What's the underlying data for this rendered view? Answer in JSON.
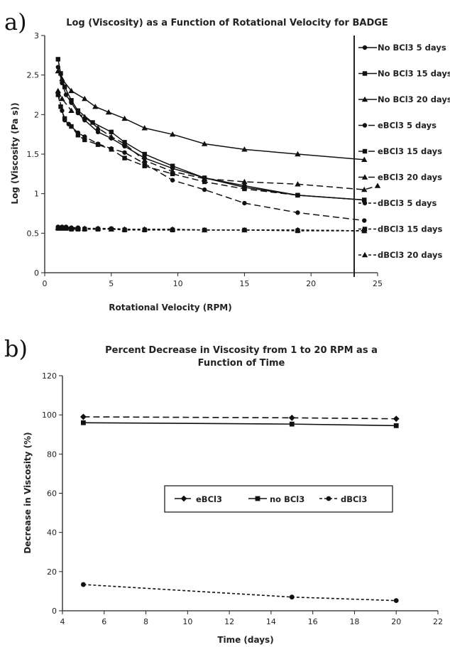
{
  "panel_labels": [
    "a)",
    "b)"
  ],
  "chart_data": [
    {
      "type": "line",
      "title": "Log (Viscosity) as a Function of Rotational Velocity for BADGE",
      "xlabel": "Rotational Velocity (RPM)",
      "ylabel": "Log (Viscosity (Pa s))",
      "xlim": [
        0,
        25
      ],
      "ylim": [
        0,
        3
      ],
      "x_ticks": [
        0,
        5,
        10,
        15,
        20,
        25
      ],
      "y_ticks": [
        0,
        0.5,
        1,
        1.5,
        2,
        2.5,
        3
      ],
      "legend_position": "right",
      "grid": false,
      "series": [
        {
          "name": "No BCl3 5 days",
          "marker": "circle",
          "dash": "solid",
          "points": [
            [
              1,
              2.6
            ],
            [
              1.3,
              2.4
            ],
            [
              1.6,
              2.25
            ],
            [
              2,
              2.15
            ],
            [
              2.5,
              2.02
            ],
            [
              3,
              1.93
            ],
            [
              4,
              1.78
            ],
            [
              5,
              1.7
            ],
            [
              6,
              1.6
            ],
            [
              7.5,
              1.45
            ],
            [
              9.6,
              1.32
            ],
            [
              12,
              1.2
            ],
            [
              15,
              1.1
            ],
            [
              19,
              0.98
            ],
            [
              24,
              0.92
            ]
          ]
        },
        {
          "name": "No BCl3 15 days",
          "marker": "square",
          "dash": "solid",
          "points": [
            [
              1,
              2.7
            ],
            [
              1.2,
              2.52
            ],
            [
              1.5,
              2.35
            ],
            [
              2,
              2.18
            ],
            [
              2.5,
              2.05
            ],
            [
              3.6,
              1.9
            ],
            [
              5,
              1.78
            ],
            [
              6,
              1.65
            ],
            [
              7.5,
              1.5
            ],
            [
              9.6,
              1.35
            ],
            [
              12,
              1.2
            ],
            [
              15,
              1.08
            ],
            [
              19,
              0.98
            ],
            [
              24,
              0.92
            ]
          ]
        },
        {
          "name": "No BCl3 20 days",
          "marker": "triangle",
          "dash": "solid",
          "points": [
            [
              1,
              2.55
            ],
            [
              1.3,
              2.45
            ],
            [
              2,
              2.3
            ],
            [
              3,
              2.2
            ],
            [
              3.8,
              2.1
            ],
            [
              4.8,
              2.03
            ],
            [
              6,
              1.95
            ],
            [
              7.5,
              1.83
            ],
            [
              9.6,
              1.75
            ],
            [
              12,
              1.63
            ],
            [
              15,
              1.56
            ],
            [
              19,
              1.5
            ],
            [
              24,
              1.43
            ]
          ]
        },
        {
          "name": "eBCl3 5 days",
          "marker": "circle",
          "dash": "dashed",
          "points": [
            [
              1,
              2.28
            ],
            [
              1.3,
              2.05
            ],
            [
              1.5,
              1.93
            ],
            [
              1.8,
              1.88
            ],
            [
              2.5,
              1.77
            ],
            [
              3,
              1.72
            ],
            [
              4,
              1.63
            ],
            [
              5,
              1.57
            ],
            [
              6,
              1.52
            ],
            [
              7.5,
              1.38
            ],
            [
              9.6,
              1.17
            ],
            [
              12,
              1.05
            ],
            [
              15,
              0.88
            ],
            [
              19,
              0.76
            ],
            [
              24,
              0.66
            ]
          ]
        },
        {
          "name": "eBCl3 15 days",
          "marker": "square",
          "dash": "dashed",
          "points": [
            [
              1,
              2.25
            ],
            [
              1.2,
              2.1
            ],
            [
              1.5,
              1.95
            ],
            [
              2,
              1.85
            ],
            [
              2.5,
              1.74
            ],
            [
              3,
              1.68
            ],
            [
              4,
              1.62
            ],
            [
              5,
              1.56
            ],
            [
              6,
              1.45
            ],
            [
              7.5,
              1.35
            ],
            [
              9.6,
              1.25
            ],
            [
              12,
              1.15
            ],
            [
              15,
              1.06
            ],
            [
              19,
              0.98
            ],
            [
              24,
              0.92
            ]
          ]
        },
        {
          "name": "eBCl3 20 days",
          "marker": "triangle",
          "dash": "dashed",
          "points": [
            [
              1,
              2.3
            ],
            [
              1.3,
              2.2
            ],
            [
              2,
              2.05
            ],
            [
              3,
              1.97
            ],
            [
              4,
              1.83
            ],
            [
              5,
              1.72
            ],
            [
              6,
              1.63
            ],
            [
              7.5,
              1.42
            ],
            [
              9.6,
              1.28
            ],
            [
              12,
              1.19
            ],
            [
              15,
              1.15
            ],
            [
              19,
              1.12
            ],
            [
              24,
              1.05
            ],
            [
              25,
              1.1
            ]
          ]
        },
        {
          "name": "dBCl3 5 days",
          "marker": "circle",
          "dash": "short-dashed",
          "points": [
            [
              1,
              0.58
            ],
            [
              1.3,
              0.58
            ],
            [
              1.6,
              0.58
            ],
            [
              2,
              0.57
            ],
            [
              2.5,
              0.57
            ],
            [
              3,
              0.56
            ],
            [
              4,
              0.56
            ],
            [
              5,
              0.56
            ],
            [
              6,
              0.55
            ],
            [
              7.5,
              0.55
            ],
            [
              9.6,
              0.55
            ],
            [
              12,
              0.54
            ],
            [
              15,
              0.54
            ],
            [
              19,
              0.54
            ],
            [
              24,
              0.53
            ]
          ]
        },
        {
          "name": "dBCl3 15 days",
          "marker": "square",
          "dash": "short-dashed",
          "points": [
            [
              1,
              0.56
            ],
            [
              1.3,
              0.56
            ],
            [
              1.6,
              0.56
            ],
            [
              2,
              0.55
            ],
            [
              2.5,
              0.55
            ],
            [
              3,
              0.55
            ],
            [
              4,
              0.55
            ],
            [
              5,
              0.55
            ],
            [
              6,
              0.54
            ],
            [
              7.5,
              0.54
            ],
            [
              9.6,
              0.54
            ],
            [
              12,
              0.54
            ],
            [
              15,
              0.54
            ],
            [
              19,
              0.53
            ],
            [
              24,
              0.53
            ]
          ]
        },
        {
          "name": "dBCl3 20 days",
          "marker": "triangle",
          "dash": "short-dashed",
          "points": [
            [
              1,
              0.57
            ],
            [
              1.3,
              0.57
            ],
            [
              1.6,
              0.57
            ],
            [
              2,
              0.56
            ],
            [
              2.5,
              0.56
            ],
            [
              3,
              0.56
            ],
            [
              4,
              0.56
            ],
            [
              5,
              0.55
            ],
            [
              6,
              0.55
            ],
            [
              7.5,
              0.55
            ],
            [
              9.6,
              0.55
            ],
            [
              12,
              0.54
            ],
            [
              15,
              0.54
            ],
            [
              19,
              0.54
            ],
            [
              24,
              0.53
            ]
          ]
        }
      ]
    },
    {
      "type": "line",
      "title": "Percent Decrease in Viscosity from 1 to 20 RPM as a Function of Time",
      "title_lines": [
        "Percent Decrease in Viscosity from 1 to 20 RPM as a",
        "Function of Time"
      ],
      "xlabel": "Time (days)",
      "ylabel": "Decrease in Viscosity (%)",
      "xlim": [
        4,
        22
      ],
      "ylim": [
        0,
        120
      ],
      "x_ticks": [
        4,
        6,
        8,
        10,
        12,
        14,
        16,
        18,
        20,
        22
      ],
      "y_ticks": [
        0,
        20,
        40,
        60,
        80,
        100,
        120
      ],
      "legend_position": "center",
      "grid": false,
      "series": [
        {
          "name": "eBCl3",
          "marker": "diamond",
          "dash": "dashed",
          "points": [
            [
              5,
              99
            ],
            [
              15,
              98.5
            ],
            [
              20,
              98
            ]
          ]
        },
        {
          "name": "no BCl3",
          "marker": "square",
          "dash": "solid",
          "points": [
            [
              5,
              96
            ],
            [
              15,
              95.3
            ],
            [
              20,
              94.5
            ]
          ]
        },
        {
          "name": "dBCl3",
          "marker": "circle",
          "dash": "short-dashed",
          "points": [
            [
              5,
              13.4
            ],
            [
              15,
              7
            ],
            [
              20,
              5.2
            ]
          ]
        }
      ]
    }
  ]
}
